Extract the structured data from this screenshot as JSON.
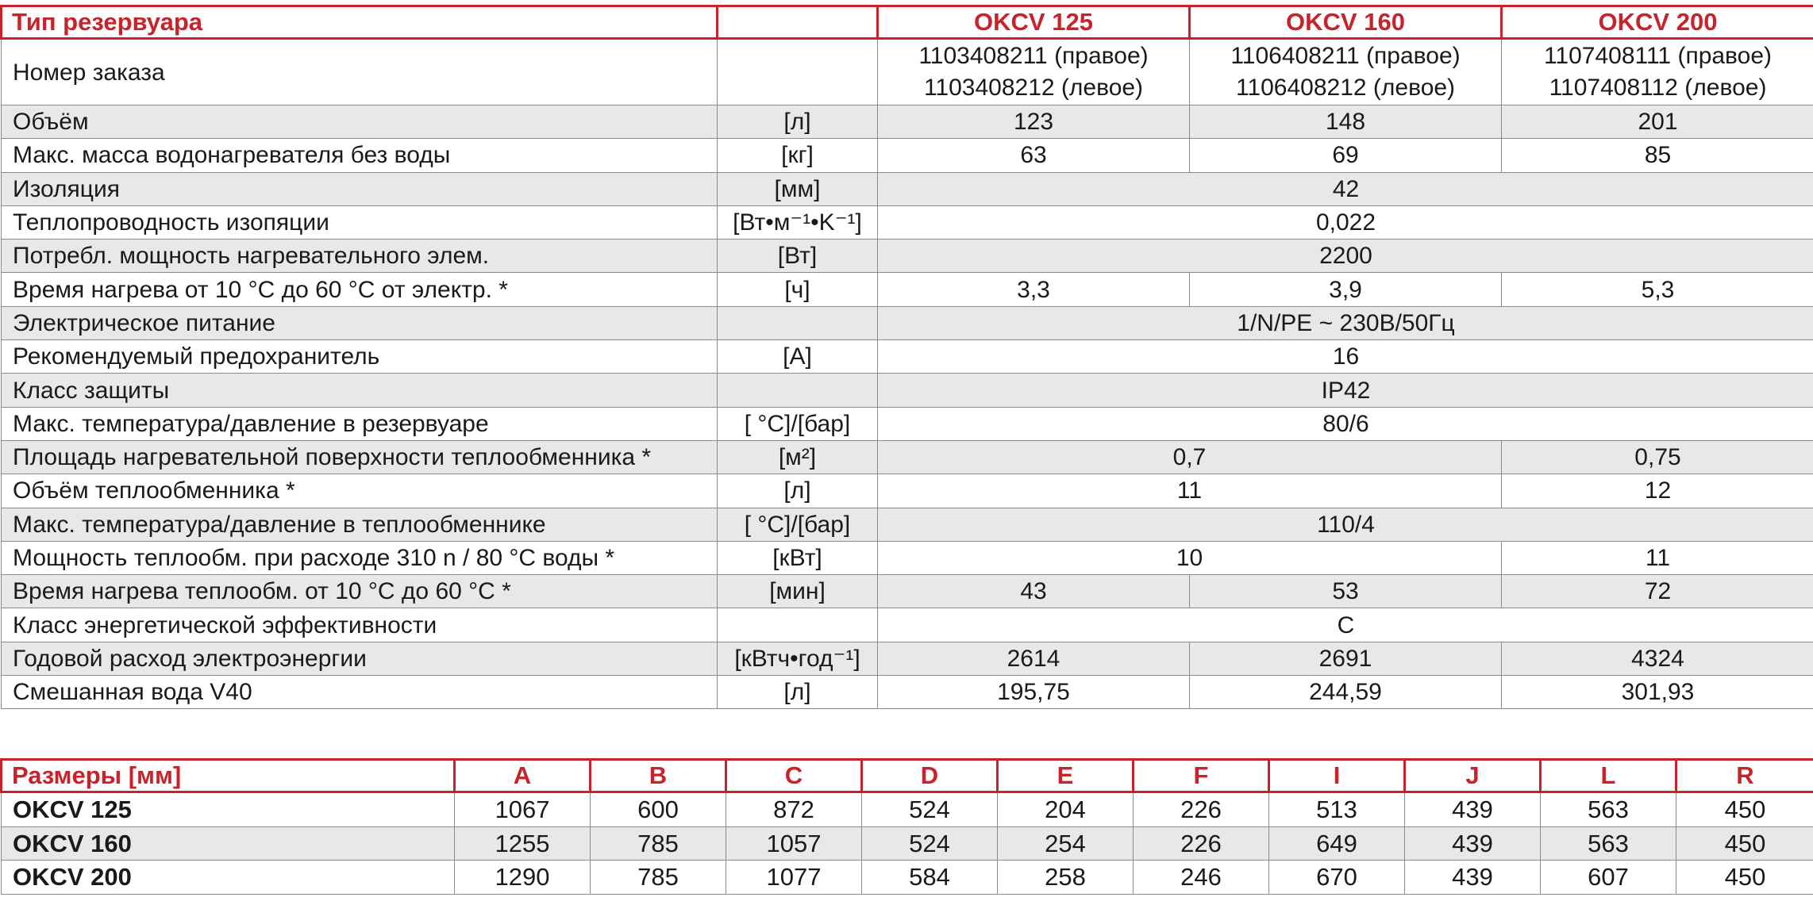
{
  "colors": {
    "accent": "#c7232b",
    "row_shade": "#e8e8e8",
    "border": "#8a8a8a"
  },
  "specs": {
    "header": {
      "title": "Тип резервуара",
      "models": [
        "OKCV 125",
        "OKCV 160",
        "OKCV 200"
      ]
    },
    "rows": [
      {
        "label": "Номер заказа",
        "unit": "",
        "values": [
          "1103408211 (правое)\n1103408212 (левое)",
          "1106408211 (правое)\n1106408212 (левое)",
          "1107408111 (правое)\n1107408112 (левое)"
        ]
      },
      {
        "label": "Объём",
        "unit": "[л]",
        "values": [
          "123",
          "148",
          "201"
        ]
      },
      {
        "label": "Макс. масса водонагревателя без воды",
        "unit": "[кг]",
        "values": [
          "63",
          "69",
          "85"
        ]
      },
      {
        "label": "Изоляция",
        "unit": "[мм]",
        "values": [
          "42"
        ]
      },
      {
        "label": "Теплопроводность изопяции",
        "unit": "[Вт•м⁻¹•K⁻¹]",
        "values": [
          "0,022"
        ]
      },
      {
        "label": "Потребл. мощность нагревательного элем.",
        "unit": "[Вт]",
        "values": [
          "2200"
        ]
      },
      {
        "label": "Время нагрева от 10 °C до 60 °C от электр. *",
        "unit": "[ч]",
        "values": [
          "3,3",
          "3,9",
          "5,3"
        ]
      },
      {
        "label": "Электрическое питание",
        "unit": "",
        "values": [
          "1/N/PE ~ 230В/50Гц"
        ]
      },
      {
        "label": "Рекомендуемый предохранитель",
        "unit": "[A]",
        "values": [
          "16"
        ]
      },
      {
        "label": "Класс защиты",
        "unit": "",
        "values": [
          "IP42"
        ]
      },
      {
        "label": "Макс. температура/давление в резервуаре",
        "unit": "[ °C]/[бар]",
        "values": [
          "80/6"
        ]
      },
      {
        "label": "Площадь нагревательной поверхности теплообменника *",
        "unit": "[м²]",
        "values": [
          "0,7",
          "0,75"
        ]
      },
      {
        "label": "Объём теплообменника *",
        "unit": "[л]",
        "values": [
          "11",
          "12"
        ]
      },
      {
        "label": "Макс. температура/давление в теплообменнике",
        "unit": "[ °C]/[бар]",
        "values": [
          "110/4"
        ]
      },
      {
        "label": "Мощность теплообм. при расходе 310 n / 80 °C воды *",
        "unit": "[кВт]",
        "values": [
          "10",
          "11"
        ]
      },
      {
        "label": "Время нагрева теплообм. от 10 °C до 60 °C *",
        "unit": "[мин]",
        "values": [
          "43",
          "53",
          "72"
        ]
      },
      {
        "label": "Класс энергетической эффективности",
        "unit": "",
        "values": [
          "C"
        ]
      },
      {
        "label": "Годовой расход электроэнергии",
        "unit": "[кВтч•год⁻¹]",
        "values": [
          "2614",
          "2691",
          "4324"
        ]
      },
      {
        "label": "Смешанная вода V40",
        "unit": "[л]",
        "values": [
          "195,75",
          "244,59",
          "301,93"
        ]
      }
    ]
  },
  "dims": {
    "title": "Размеры [мм]",
    "columns": [
      "A",
      "B",
      "C",
      "D",
      "E",
      "F",
      "I",
      "J",
      "L",
      "R"
    ],
    "rows": [
      {
        "model": "OKCV 125",
        "values": [
          "1067",
          "600",
          "872",
          "524",
          "204",
          "226",
          "513",
          "439",
          "563",
          "450"
        ]
      },
      {
        "model": "OKCV 160",
        "values": [
          "1255",
          "785",
          "1057",
          "524",
          "254",
          "226",
          "649",
          "439",
          "563",
          "450"
        ]
      },
      {
        "model": "OKCV 200",
        "values": [
          "1290",
          "785",
          "1077",
          "584",
          "258",
          "246",
          "670",
          "439",
          "607",
          "450"
        ]
      }
    ]
  }
}
